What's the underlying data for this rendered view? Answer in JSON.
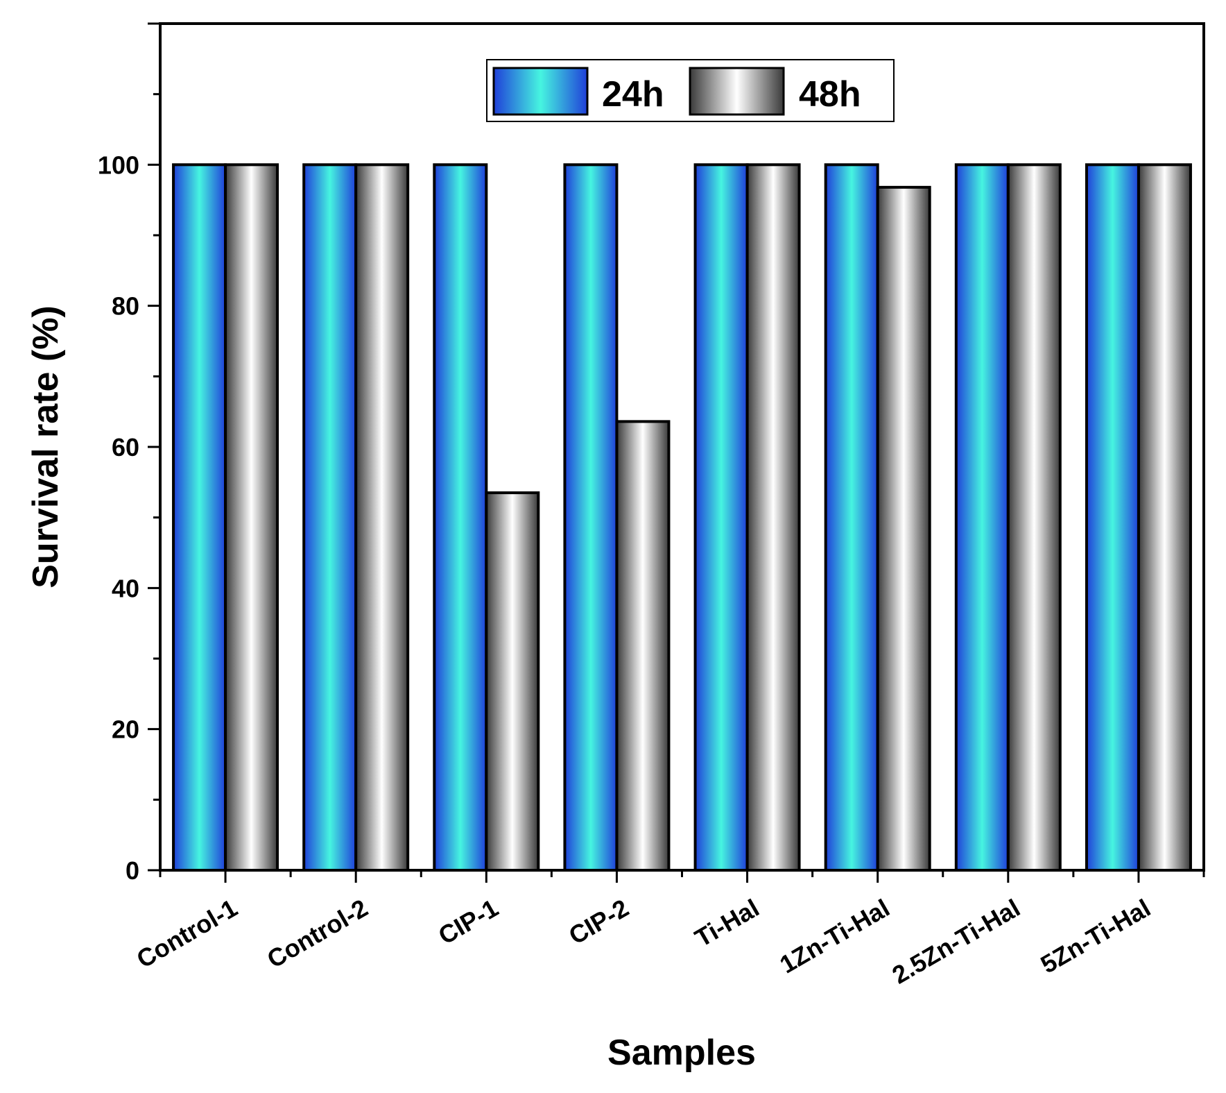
{
  "chart_data": {
    "type": "bar",
    "categories": [
      "Control-1",
      "Control-2",
      "CIP-1",
      "CIP-2",
      "Ti-Hal",
      "1Zn-Ti-Hal",
      "2.5Zn-Ti-Hal",
      "5Zn-Ti-Hal"
    ],
    "series": [
      {
        "name": "24h",
        "values": [
          100,
          100,
          100,
          100,
          100,
          100,
          100,
          100
        ],
        "color": "#3ff0dc"
      },
      {
        "name": "48h",
        "values": [
          100,
          100,
          53.5,
          63.6,
          100,
          96.8,
          100,
          100
        ],
        "color": "#ffffff"
      }
    ],
    "title": "",
    "xlabel": "Samples",
    "ylabel": "Survival rate (%)",
    "ylim": [
      0,
      120
    ],
    "yticks": [
      0,
      20,
      40,
      60,
      80,
      100
    ],
    "grid": false,
    "legend_position": "top-center"
  }
}
